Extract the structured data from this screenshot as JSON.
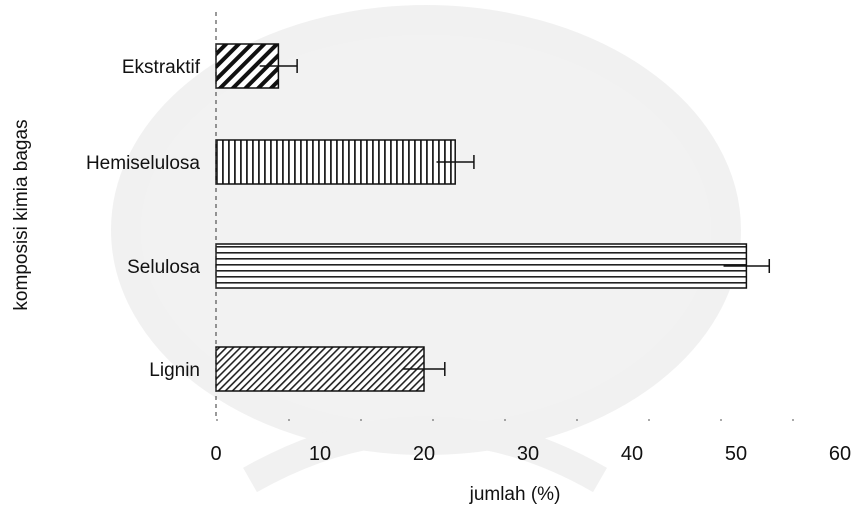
{
  "chart_data": {
    "type": "bar",
    "orientation": "horizontal",
    "title": "",
    "xlabel": "jumlah (%)",
    "ylabel": "komposisi kimia bagas",
    "xlim": [
      0,
      60
    ],
    "xticks": [
      0,
      10,
      20,
      30,
      40,
      50,
      60
    ],
    "grid": false,
    "categories": [
      "Ekstraktif",
      "Hemiselulosa",
      "Selulosa",
      "Lignin"
    ],
    "values": [
      6,
      23,
      51,
      20
    ],
    "errors": [
      1.8,
      1.8,
      2.2,
      2.0
    ],
    "patterns": [
      "diagonal-bold",
      "vertical",
      "horizontal",
      "diagonal-fine"
    ],
    "bar_stroke": "#111111"
  }
}
